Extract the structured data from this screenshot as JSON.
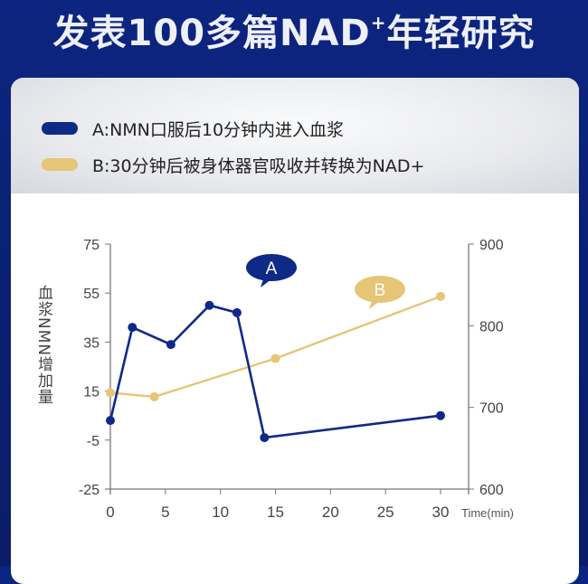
{
  "header": {
    "title_main": "发表100多篇NAD",
    "title_sup": "+",
    "title_tail": "年轻研究"
  },
  "colors": {
    "navy": "#0f2a86",
    "gold": "#e6c576",
    "axis": "#777777"
  },
  "chart_data": {
    "type": "line",
    "title": "",
    "xlabel": "Time(min)",
    "ylabel": "血浆NMN增加量",
    "xlim": [
      0,
      30
    ],
    "ylim": [
      -25,
      75
    ],
    "y2lim": [
      600,
      900
    ],
    "xticks": [
      0,
      5,
      10,
      15,
      20,
      25,
      30
    ],
    "yticks": [
      75,
      55,
      35,
      15,
      -5,
      -25
    ],
    "y2ticks": [
      900,
      800,
      700,
      600
    ],
    "legend": "top-left",
    "series": [
      {
        "name": "A:NMN口服后10分钟内进入血浆",
        "marker_label": "A",
        "axis": "left",
        "color": "#0f2a86",
        "x": [
          0,
          2,
          5.5,
          9,
          11.5,
          14,
          30
        ],
        "y": [
          3,
          41,
          34,
          50,
          47,
          -4,
          5
        ]
      },
      {
        "name": "B:30分钟后被身体器官吸收并转换为NAD+",
        "marker_label": "B",
        "axis": "right",
        "color": "#e6c576",
        "x": [
          0,
          4,
          15,
          30
        ],
        "y": [
          718,
          713,
          760,
          836
        ]
      }
    ]
  }
}
